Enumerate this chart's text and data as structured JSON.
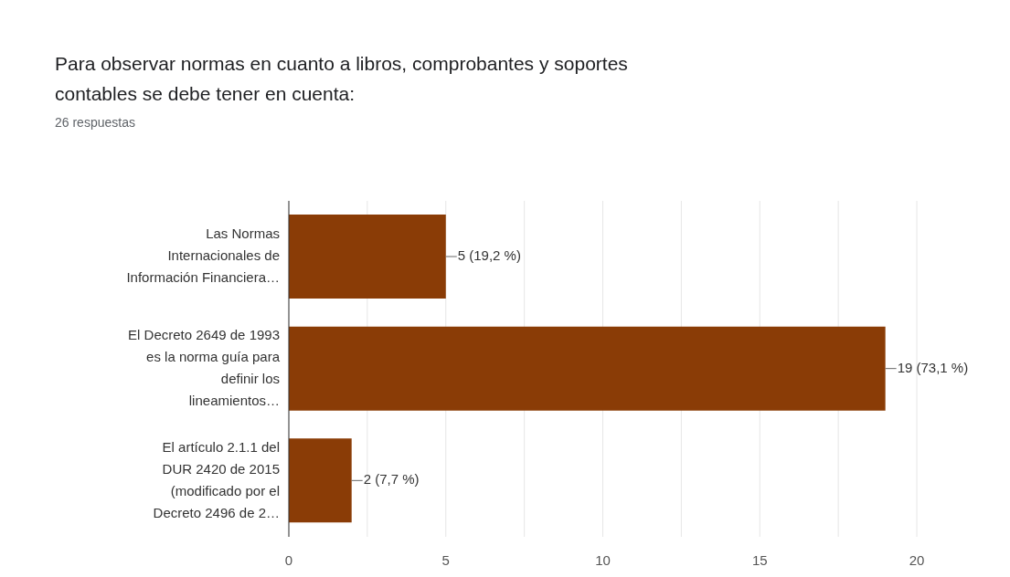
{
  "chart_data": {
    "type": "bar",
    "orientation": "horizontal",
    "title": "Para observar normas en cuanto a libros, comprobantes y soportes contables se debe tener en cuenta:",
    "subtitle": "26 respuestas",
    "categories": [
      "Las Normas Internacionales de Información Financiera…",
      "El Decreto 2649 de 1993 es la norma guía para definir los lineamientos…",
      "El artículo 2.1.1 del DUR 2420 de 2015 (modificado por el Decreto 2496 de 2…"
    ],
    "values": [
      5,
      19,
      2
    ],
    "color": "#8a3c06",
    "value_labels": [
      "5 (19,2 %)",
      "19 (73,1 %)",
      "2 (7,7 %)"
    ],
    "xlim": [
      0,
      20
    ],
    "xticks": [
      0,
      {
        "value": 2.5,
        "label": null
      },
      5,
      {
        "value": 7.5,
        "label": null
      },
      10,
      {
        "value": 12.5,
        "label": null
      },
      15,
      {
        "value": 17.5,
        "label": null
      },
      20
    ],
    "grid": "x",
    "legend": false
  }
}
